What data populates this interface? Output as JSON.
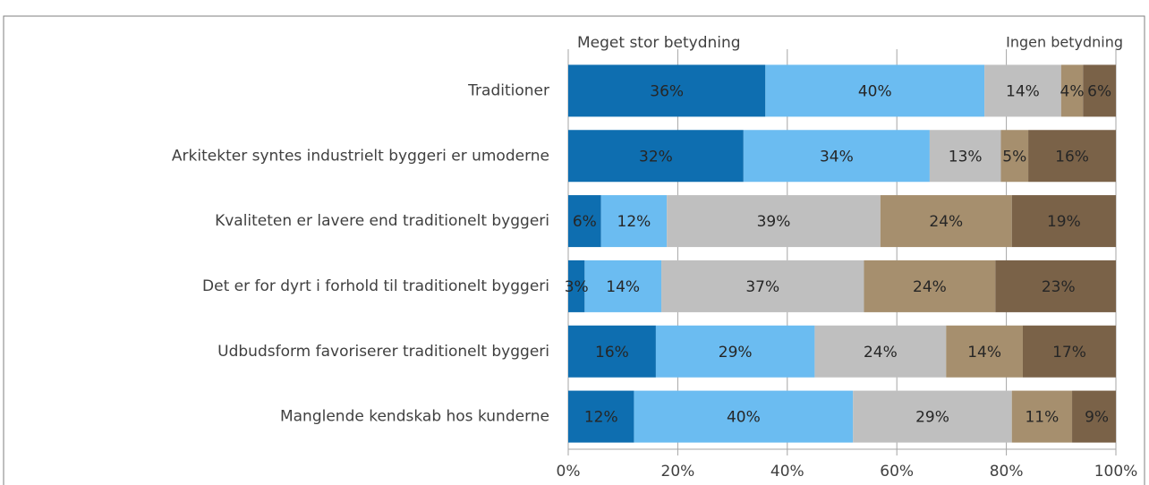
{
  "chart_data": {
    "type": "stacked-barh",
    "annotations": [
      "Meget stor betydning",
      "Ingen betydning"
    ],
    "categories": [
      "Traditioner",
      "Arkitekter syntes industrielt byggeri er umoderne",
      "Kvaliteten er lavere end traditionelt byggeri",
      "Det er for dyrt i forhold til traditionelt byggeri",
      "Udbudsform favoriserer traditionelt byggeri",
      "Manglende kendskab hos kunderne"
    ],
    "series": [
      {
        "color": "#0e6eb0",
        "values": [
          36,
          32,
          6,
          3,
          16,
          12
        ],
        "value_labels": [
          "36%",
          "32%",
          "6%",
          "3%",
          "16%",
          "12%"
        ]
      },
      {
        "color": "#6bbcf1",
        "values": [
          40,
          34,
          12,
          14,
          29,
          40
        ],
        "value_labels": [
          "40%",
          "34%",
          "12%",
          "14%",
          "29%",
          "40%"
        ]
      },
      {
        "color": "#bfbfbf",
        "values": [
          14,
          13,
          39,
          37,
          24,
          29
        ],
        "value_labels": [
          "14%",
          "13%",
          "39%",
          "37%",
          "24%",
          "29%"
        ]
      },
      {
        "color": "#a68f6e",
        "values": [
          4,
          5,
          24,
          24,
          14,
          11
        ],
        "value_labels": [
          "4%",
          "5%",
          "24%",
          "24%",
          "14%",
          "11%"
        ]
      },
      {
        "color": "#7a6248",
        "values": [
          6,
          16,
          19,
          23,
          17,
          9
        ],
        "value_labels": [
          "6%",
          "16%",
          "19%",
          "23%",
          "17%",
          "9%"
        ]
      }
    ],
    "xlim": [
      0,
      100
    ],
    "xticks": [
      {
        "value": 0,
        "label": "0%"
      },
      {
        "value": 20,
        "label": "20%"
      },
      {
        "value": 40,
        "label": "40%"
      },
      {
        "value": 60,
        "label": "60%"
      },
      {
        "value": 80,
        "label": "80%"
      },
      {
        "value": 100,
        "label": "100%"
      }
    ],
    "grid": true
  }
}
